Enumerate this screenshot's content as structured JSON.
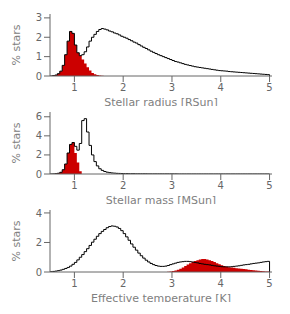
{
  "chart_data": [
    {
      "type": "histogram",
      "xlabel": "Stellar radius [RSun]",
      "ylabel": "% stars",
      "xlim": [
        0.5,
        5.05
      ],
      "ylim": [
        0,
        3.2
      ],
      "yticks": [
        0,
        1,
        2,
        3
      ],
      "xticks": [
        1,
        2,
        3,
        4,
        5
      ],
      "series": [
        {
          "type": "bar",
          "color": "#cc0000",
          "bins": [
            0.5,
            0.55,
            0.6,
            0.65,
            0.7,
            0.75,
            0.8,
            0.85,
            0.9,
            0.95,
            1.0,
            1.05,
            1.1,
            1.15,
            1.2,
            1.25,
            1.3,
            1.35,
            1.4,
            1.45,
            1.5,
            1.55,
            1.6,
            1.65
          ],
          "values": [
            0.0,
            0.02,
            0.05,
            0.12,
            0.25,
            0.55,
            1.1,
            1.8,
            2.3,
            2.2,
            1.6,
            1.2,
            1.05,
            0.85,
            0.65,
            0.45,
            0.28,
            0.16,
            0.09,
            0.05,
            0.03,
            0.01,
            0.0
          ]
        },
        {
          "type": "step",
          "color": "black",
          "bins": [
            0.5,
            0.55,
            0.6,
            0.65,
            0.7,
            0.75,
            0.8,
            0.85,
            0.9,
            0.95,
            1.0,
            1.05,
            1.1,
            1.15,
            1.2,
            1.25,
            1.3,
            1.35,
            1.4,
            1.45,
            1.5,
            1.55,
            1.6,
            1.65,
            1.7,
            1.75,
            1.8,
            1.85,
            1.9,
            1.95,
            2.0,
            2.05,
            2.1,
            2.15,
            2.2,
            2.25,
            2.3,
            2.35,
            2.4,
            2.45,
            2.5,
            2.55,
            2.6,
            2.65,
            2.7,
            2.75,
            2.8,
            2.85,
            2.9,
            2.95,
            3.0,
            3.05,
            3.1,
            3.15,
            3.2,
            3.25,
            3.3,
            3.35,
            3.4,
            3.45,
            3.5,
            3.55,
            3.6,
            3.65,
            3.7,
            3.75,
            3.8,
            3.85,
            3.9,
            3.95,
            4.0,
            4.05,
            4.1,
            4.15,
            4.2,
            4.25,
            4.3,
            4.35,
            4.4,
            4.45,
            4.5,
            4.55,
            4.6,
            4.65,
            4.7,
            4.75,
            4.8,
            4.85,
            4.9,
            4.95,
            5.0
          ],
          "values": [
            0.0,
            0.02,
            0.05,
            0.12,
            0.25,
            0.55,
            1.1,
            1.8,
            2.3,
            2.2,
            1.6,
            1.2,
            1.05,
            1.1,
            1.25,
            1.5,
            1.8,
            2.0,
            2.15,
            2.3,
            2.4,
            2.45,
            2.42,
            2.38,
            2.32,
            2.28,
            2.22,
            2.18,
            2.12,
            2.05,
            2.0,
            1.95,
            1.88,
            1.82,
            1.75,
            1.7,
            1.62,
            1.55,
            1.48,
            1.42,
            1.35,
            1.28,
            1.22,
            1.16,
            1.1,
            1.05,
            1.0,
            0.95,
            0.9,
            0.85,
            0.8,
            0.75,
            0.72,
            0.68,
            0.64,
            0.6,
            0.57,
            0.54,
            0.51,
            0.48,
            0.46,
            0.44,
            0.42,
            0.4,
            0.38,
            0.36,
            0.34,
            0.32,
            0.3,
            0.28,
            0.27,
            0.26,
            0.25,
            0.23,
            0.22,
            0.21,
            0.2,
            0.19,
            0.18,
            0.17,
            0.16,
            0.15,
            0.14,
            0.13,
            0.12,
            0.11,
            0.1,
            0.09,
            0.08,
            0.07
          ]
        }
      ]
    },
    {
      "type": "histogram",
      "xlabel": "Stellar mass [MSun]",
      "ylabel": "% stars",
      "xlim": [
        0.5,
        5.05
      ],
      "ylim": [
        0,
        6.5
      ],
      "yticks": [
        0,
        2,
        4,
        6
      ],
      "xticks": [
        1,
        2,
        3,
        4,
        5
      ],
      "series": [
        {
          "type": "bar",
          "color": "#cc0000",
          "bins": [
            0.5,
            0.55,
            0.6,
            0.65,
            0.7,
            0.75,
            0.8,
            0.85,
            0.9,
            0.95,
            1.0,
            1.05,
            1.1,
            1.15
          ],
          "values": [
            0.0,
            0.01,
            0.03,
            0.08,
            0.18,
            0.45,
            1.05,
            2.2,
            3.1,
            3.3,
            2.2,
            1.2,
            0.3
          ]
        },
        {
          "type": "step",
          "color": "black",
          "bins": [
            0.5,
            0.55,
            0.6,
            0.65,
            0.7,
            0.75,
            0.8,
            0.85,
            0.9,
            0.95,
            1.0,
            1.05,
            1.1,
            1.15,
            1.2,
            1.25,
            1.3,
            1.35,
            1.4,
            1.45,
            1.5,
            1.55,
            1.6,
            1.65,
            1.7,
            1.75,
            1.8,
            1.85,
            1.9,
            1.95,
            2.0,
            2.05,
            2.1,
            2.15,
            2.2,
            2.25,
            2.3,
            2.35,
            2.4,
            2.45,
            2.5,
            2.55,
            2.6,
            2.65,
            2.7,
            2.75,
            2.8,
            2.85,
            2.9,
            2.95,
            3.0,
            3.05,
            3.1,
            3.15,
            3.2,
            3.25,
            3.3,
            3.35,
            3.4,
            3.45,
            3.5,
            3.55,
            3.6,
            3.65,
            3.7,
            3.75,
            3.8,
            3.85,
            3.9,
            3.95,
            4.0,
            4.05,
            4.1,
            4.15,
            4.2,
            4.25,
            4.3,
            4.35,
            4.4,
            4.45,
            4.5,
            4.55,
            4.6,
            4.65,
            4.7,
            4.75,
            4.8,
            4.85,
            4.9,
            4.95,
            5.0
          ],
          "values": [
            0.0,
            0.01,
            0.03,
            0.08,
            0.18,
            0.45,
            1.05,
            2.2,
            3.1,
            3.3,
            2.9,
            2.5,
            3.2,
            5.6,
            5.8,
            4.4,
            3.0,
            2.0,
            1.3,
            0.85,
            0.55,
            0.38,
            0.26,
            0.19,
            0.14,
            0.11,
            0.09,
            0.07,
            0.06,
            0.05,
            0.04,
            0.04,
            0.03,
            0.03,
            0.03,
            0.02,
            0.02,
            0.02,
            0.02,
            0.02,
            0.01,
            0.01,
            0.01,
            0.01,
            0.01,
            0.01,
            0.01,
            0.01,
            0.01,
            0.01,
            0.01,
            0.01,
            0.0,
            0.0,
            0.0,
            0.0,
            0.0,
            0.0,
            0.0,
            0.0,
            0.0,
            0.0,
            0.0,
            0.0,
            0.0,
            0.0,
            0.0,
            0.0,
            0.0,
            0.0,
            0.0,
            0.0,
            0.0,
            0.0,
            0.0,
            0.0,
            0.0,
            0.0,
            0.0,
            0.0,
            0.0,
            0.0,
            0.0,
            0.0,
            0.0,
            0.0,
            0.0,
            0.0,
            0.0,
            0.0
          ]
        }
      ]
    },
    {
      "type": "histogram",
      "xlabel": "Effective temperature [K]",
      "ylabel": "% stars",
      "xlim": [
        0.5,
        5.05
      ],
      "ylim": [
        0,
        4.2
      ],
      "yticks": [
        0,
        1,
        2,
        3,
        4
      ],
      "xticks": [
        1,
        2,
        3,
        4,
        5
      ],
      "series": [
        {
          "type": "bar",
          "color": "#cc0000",
          "bins": [
            2.9,
            2.95,
            3.0,
            3.05,
            3.1,
            3.15,
            3.2,
            3.25,
            3.3,
            3.35,
            3.4,
            3.45,
            3.5,
            3.55,
            3.6,
            3.65,
            3.7,
            3.75,
            3.8,
            3.85,
            3.9,
            3.95,
            4.0,
            4.05,
            4.1,
            4.15,
            4.2,
            4.25,
            4.3,
            4.35,
            4.4,
            4.45,
            4.5,
            4.55,
            4.6,
            4.65,
            4.7,
            4.75,
            4.8,
            4.85,
            4.9,
            4.95,
            5.0
          ],
          "values": [
            0.01,
            0.03,
            0.06,
            0.1,
            0.15,
            0.22,
            0.3,
            0.4,
            0.5,
            0.6,
            0.68,
            0.75,
            0.8,
            0.85,
            0.88,
            0.88,
            0.85,
            0.8,
            0.75,
            0.68,
            0.6,
            0.52,
            0.45,
            0.4,
            0.36,
            0.33,
            0.3,
            0.28,
            0.26,
            0.24,
            0.22,
            0.2,
            0.18,
            0.16,
            0.14,
            0.12,
            0.1,
            0.08,
            0.06,
            0.05,
            0.04,
            0.03
          ]
        },
        {
          "type": "step",
          "color": "black",
          "bins": [
            0.5,
            0.55,
            0.6,
            0.65,
            0.7,
            0.75,
            0.8,
            0.85,
            0.9,
            0.95,
            1.0,
            1.05,
            1.1,
            1.15,
            1.2,
            1.25,
            1.3,
            1.35,
            1.4,
            1.45,
            1.5,
            1.55,
            1.6,
            1.65,
            1.7,
            1.75,
            1.8,
            1.85,
            1.9,
            1.95,
            2.0,
            2.05,
            2.1,
            2.15,
            2.2,
            2.25,
            2.3,
            2.35,
            2.4,
            2.45,
            2.5,
            2.55,
            2.6,
            2.65,
            2.7,
            2.75,
            2.8,
            2.85,
            2.9,
            2.95,
            3.0,
            3.05,
            3.1,
            3.15,
            3.2,
            3.25,
            3.3,
            3.35,
            3.4,
            3.45,
            3.5,
            3.55,
            3.6,
            3.65,
            3.7,
            3.75,
            3.8,
            3.85,
            3.9,
            3.95,
            4.0,
            4.05,
            4.1,
            4.15,
            4.2,
            4.25,
            4.3,
            4.35,
            4.4,
            4.45,
            4.5,
            4.55,
            4.6,
            4.65,
            4.7,
            4.75,
            4.8,
            4.85,
            4.9,
            4.95,
            5.0
          ],
          "values": [
            0.02,
            0.04,
            0.06,
            0.09,
            0.13,
            0.18,
            0.24,
            0.31,
            0.4,
            0.52,
            0.65,
            0.82,
            1.0,
            1.18,
            1.38,
            1.58,
            1.8,
            2.02,
            2.22,
            2.42,
            2.6,
            2.75,
            2.88,
            3.0,
            3.08,
            3.12,
            3.1,
            3.05,
            2.95,
            2.8,
            2.6,
            2.38,
            2.15,
            1.9,
            1.68,
            1.48,
            1.28,
            1.1,
            0.94,
            0.8,
            0.68,
            0.58,
            0.5,
            0.44,
            0.4,
            0.38,
            0.38,
            0.4,
            0.44,
            0.5,
            0.55,
            0.6,
            0.65,
            0.68,
            0.7,
            0.72,
            0.72,
            0.7,
            0.68,
            0.65,
            0.62,
            0.58,
            0.55,
            0.52,
            0.5,
            0.48,
            0.45,
            0.42,
            0.4,
            0.38,
            0.36,
            0.35,
            0.35,
            0.35,
            0.36,
            0.38,
            0.4,
            0.42,
            0.45,
            0.48,
            0.5,
            0.52,
            0.55,
            0.58,
            0.6,
            0.62,
            0.65,
            0.68,
            0.7,
            0.72
          ]
        }
      ]
    }
  ]
}
